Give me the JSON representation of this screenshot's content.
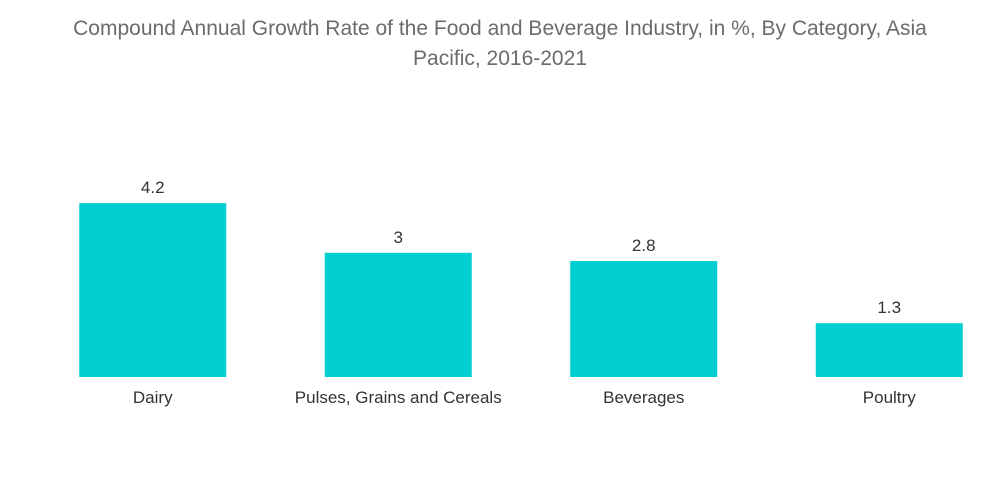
{
  "chart_data": {
    "type": "bar",
    "title": "Compound Annual Growth Rate of the Food and Beverage Industry, in %, By Category, Asia\nPacific, 2016-2021",
    "categories": [
      "Dairy",
      "Pulses, Grains and Cereals",
      "Beverages",
      "Poultry"
    ],
    "values": [
      4.2,
      3,
      2.8,
      1.3
    ],
    "value_labels": [
      "4.2",
      "3",
      "2.8",
      "1.3"
    ],
    "xlabel": "",
    "ylabel": "",
    "ylim": [
      0,
      4.2
    ],
    "grid": false,
    "legend": "none",
    "bar_color": "#00CED1"
  }
}
